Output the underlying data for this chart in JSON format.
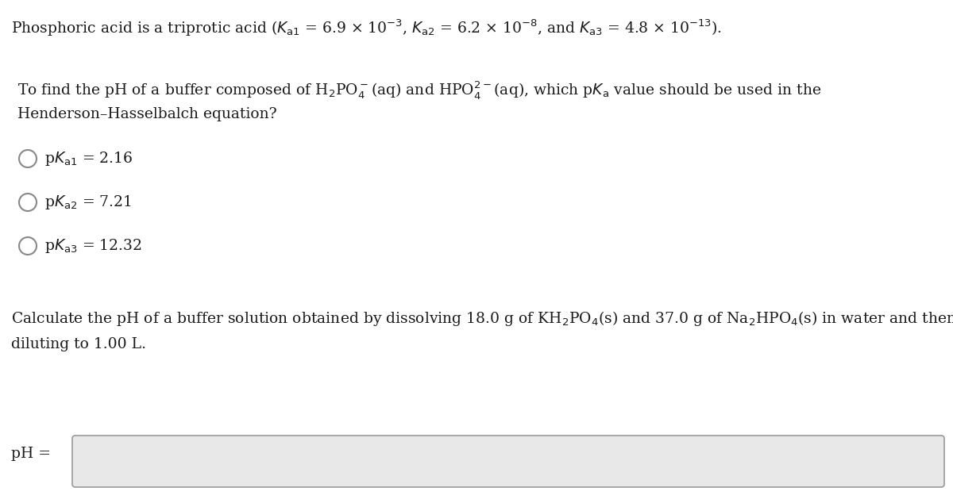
{
  "bg_color": "#ffffff",
  "text_color": "#1a1a1a",
  "figsize": [
    12.0,
    6.29
  ],
  "dpi": 100,
  "line1": "Phosphoric acid is a triprotic acid ($K_{\\mathrm{a1}}$ = 6.9 × 10$^{-3}$, $K_{\\mathrm{a2}}$ = 6.2 × 10$^{-8}$, and $K_{\\mathrm{a3}}$ = 4.8 × 10$^{-13}$).",
  "line2a": "To find the pH of a buffer composed of H$_2$PO$_4^-$(aq) and HPO$_4^{2-}$(aq), which p$K_{\\mathrm{a}}$ value should be used in the",
  "line2b": "Henderson–Hasselbalch equation?",
  "choice1": "p$K_{\\mathrm{a1}}$ = 2.16",
  "choice2": "p$K_{\\mathrm{a2}}$ = 7.21",
  "choice3": "p$K_{\\mathrm{a3}}$ = 12.32",
  "line3a": "Calculate the pH of a buffer solution obtained by dissolving 18.0 g of KH$_2$PO$_4$(s) and 37.0 g of Na$_2$HPO$_4$(s) in water and then",
  "line3b": "diluting to 1.00 L.",
  "ph_label": "pH =",
  "font_size_main": 13.5,
  "circle_color": "#888888",
  "input_box_color": "#e8e8e8",
  "input_box_border": "#999999"
}
